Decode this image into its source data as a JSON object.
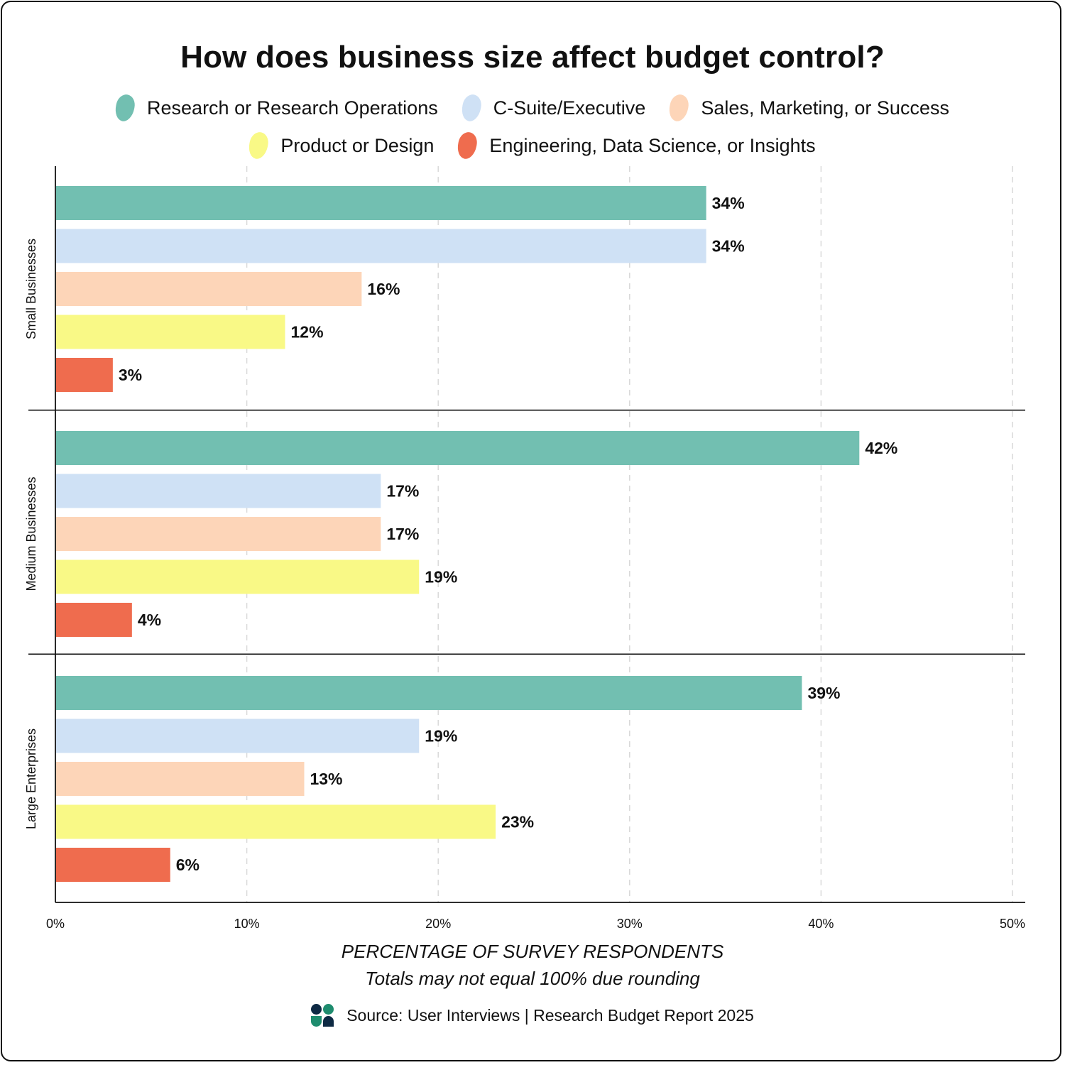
{
  "title": "How does business size affect budget control?",
  "legend": [
    {
      "label": "Research or Research Operations",
      "color": "#72bfb1"
    },
    {
      "label": "C-Suite/Executive",
      "color": "#cfe1f5"
    },
    {
      "label": "Sales, Marketing, or Success",
      "color": "#fdd5b8"
    },
    {
      "label": "Product or Design",
      "color": "#f9f986"
    },
    {
      "label": "Engineering, Data Science, or Insights",
      "color": "#ef6c4e"
    }
  ],
  "x_axis": {
    "title": "PERCENTAGE OF SURVEY RESPONDENTS",
    "note": "Totals may not equal 100% due rounding"
  },
  "source": "Source: User Interviews | Research Budget Report 2025",
  "chart_data": {
    "type": "bar",
    "orientation": "horizontal",
    "categories": [
      "Small Businesses",
      "Medium Businesses",
      "Large Enterprises"
    ],
    "series": [
      {
        "name": "Research or Research Operations",
        "color": "#72bfb1",
        "values": [
          34,
          42,
          39
        ],
        "labels": [
          "34%",
          "42%",
          "39%"
        ]
      },
      {
        "name": "C-Suite/Executive",
        "color": "#cfe1f5",
        "values": [
          34,
          17,
          19
        ],
        "labels": [
          "34%",
          "17%",
          "19%"
        ]
      },
      {
        "name": "Sales, Marketing, or Success",
        "color": "#fdd5b8",
        "values": [
          16,
          17,
          13
        ],
        "labels": [
          "16%",
          "17%",
          "13%"
        ]
      },
      {
        "name": "Product or Design",
        "color": "#f9f986",
        "values": [
          12,
          19,
          23
        ],
        "labels": [
          "12%",
          "19%",
          "23%"
        ]
      },
      {
        "name": "Engineering, Data Science, or Insights",
        "color": "#ef6c4e",
        "values": [
          3,
          4,
          6
        ],
        "labels": [
          "3%",
          "4%",
          "6%"
        ]
      }
    ],
    "xlim": [
      0,
      50
    ],
    "xticks": [
      0,
      10,
      20,
      30,
      40,
      50
    ],
    "xtick_labels": [
      "0%",
      "10%",
      "20%",
      "30%",
      "40%",
      "50%"
    ],
    "grid": "vertical dashed",
    "legend_position": "top"
  }
}
